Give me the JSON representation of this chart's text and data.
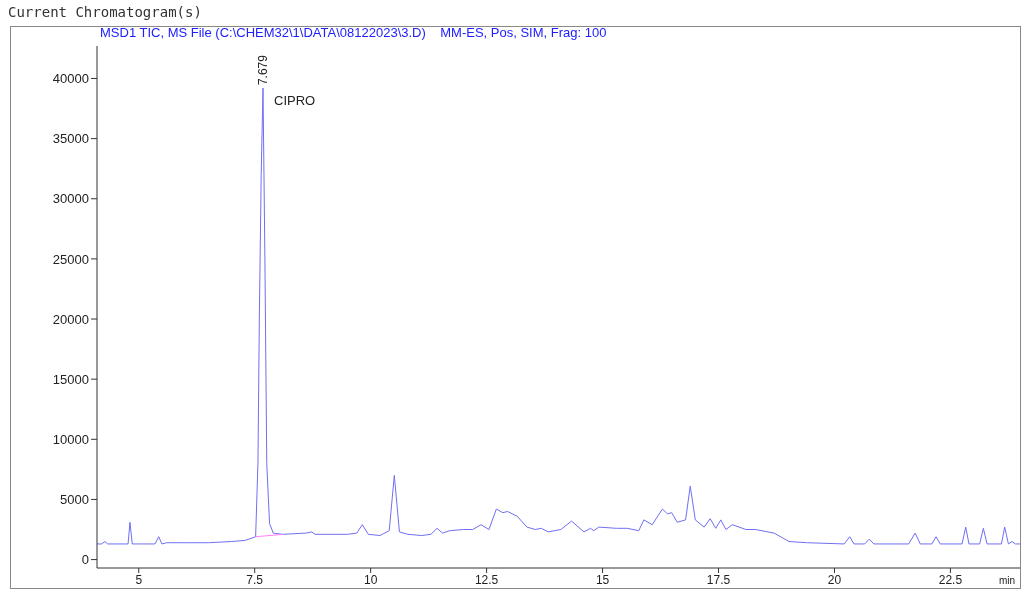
{
  "chart_data": {
    "type": "line",
    "title": "Current Chromatogram(s)",
    "subtitle": "MSD1 TIC, MS File (C:\\CHEM32\\1\\DATA\\08122023\\3.D)    MM-ES, Pos, SIM, Frag: 100",
    "xlabel": "min",
    "annotations": [
      {
        "text": "7.679",
        "x": 7.679,
        "y": 39200
      },
      "CIPRO"
    ],
    "xlim": [
      4.1,
      24.0
    ],
    "xticks": [
      5,
      7.5,
      10,
      12.5,
      15,
      17.5,
      20,
      22.5
    ],
    "ylim": [
      -700,
      42700
    ],
    "yticks": [
      0,
      5000,
      10000,
      15000,
      20000,
      25000,
      30000,
      35000,
      40000
    ],
    "grid": false,
    "legend": false,
    "marker": "none",
    "line_style": "solid",
    "series": [
      {
        "color": "#6f6ff5",
        "x": [
          4.1,
          4.2,
          4.27,
          4.33,
          4.7,
          4.77,
          4.81,
          4.86,
          4.95,
          5.35,
          5.43,
          5.5,
          5.6,
          6.0,
          6.5,
          7.0,
          7.3,
          7.52,
          7.57,
          7.6,
          7.64,
          7.679,
          7.72,
          7.76,
          7.82,
          7.9,
          8.1,
          8.6,
          8.73,
          8.8,
          9.5,
          9.7,
          9.82,
          9.95,
          10.2,
          10.4,
          10.51,
          10.62,
          10.8,
          11.1,
          11.3,
          11.43,
          11.55,
          11.7,
          12.0,
          12.2,
          12.38,
          12.55,
          12.71,
          12.85,
          12.95,
          13.16,
          13.37,
          13.55,
          13.68,
          13.83,
          14.1,
          14.33,
          14.6,
          14.74,
          14.81,
          14.92,
          15.3,
          15.53,
          15.78,
          15.89,
          16.07,
          16.29,
          16.4,
          16.49,
          16.61,
          16.79,
          16.89,
          17.0,
          17.19,
          17.32,
          17.44,
          17.55,
          17.66,
          17.8,
          18.09,
          18.3,
          18.7,
          19.02,
          19.42,
          20.21,
          20.33,
          20.42,
          20.65,
          20.75,
          20.85,
          21.6,
          21.74,
          21.85,
          22.1,
          22.19,
          22.28,
          22.75,
          22.83,
          22.9,
          23.13,
          23.21,
          23.29,
          23.6,
          23.67,
          23.75,
          23.83,
          23.9,
          24.0
        ],
        "values": [
          1300,
          1300,
          1500,
          1300,
          1300,
          1300,
          3100,
          1300,
          1300,
          1300,
          1900,
          1300,
          1400,
          1400,
          1400,
          1500,
          1600,
          1900,
          8000,
          20000,
          32000,
          39200,
          25000,
          8000,
          3000,
          2200,
          2100,
          2200,
          2300,
          2100,
          2100,
          2200,
          2900,
          2100,
          2000,
          2400,
          7000,
          2300,
          2100,
          2000,
          2100,
          2600,
          2200,
          2400,
          2500,
          2500,
          2900,
          2500,
          4200,
          3900,
          4000,
          3600,
          2700,
          2500,
          2600,
          2300,
          2500,
          3200,
          2300,
          2600,
          2400,
          2700,
          2600,
          2600,
          2400,
          3300,
          2900,
          4200,
          3800,
          3900,
          3100,
          3300,
          6100,
          3300,
          2700,
          3400,
          2600,
          3300,
          2500,
          2900,
          2500,
          2500,
          2200,
          1500,
          1400,
          1300,
          1900,
          1300,
          1300,
          1700,
          1300,
          1300,
          2200,
          1300,
          1300,
          1900,
          1300,
          1300,
          2700,
          1300,
          1300,
          2600,
          1300,
          1300,
          2700,
          1300,
          1500,
          1300,
          1300
        ]
      },
      {
        "color": "#ff80ff",
        "x": [
          7.52,
          8.12
        ],
        "values": [
          1900,
          2100
        ]
      }
    ]
  }
}
